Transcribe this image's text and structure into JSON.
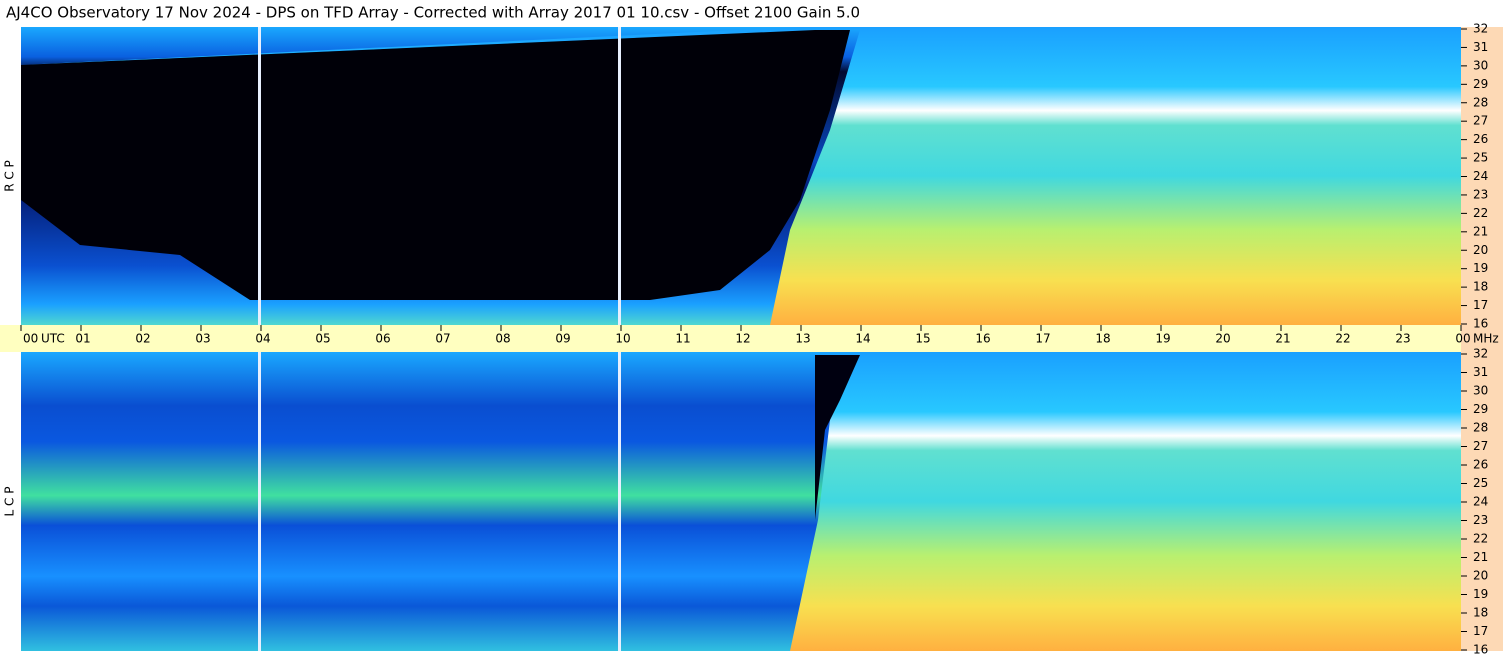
{
  "chart_data": {
    "type": "spectrogram",
    "title": "AJ4CO Observatory  17 Nov 2024  -  DPS on TFD Array  -  Corrected with Array 2017 01 10.csv  -  Offset 2100  Gain 5.0",
    "xlabel": "UTC",
    "ylabel": "MHz",
    "xlim": [
      0,
      24
    ],
    "xticks": [
      {
        "value": 0,
        "label": "00"
      },
      {
        "value": 1,
        "label": "01"
      },
      {
        "value": 2,
        "label": "02"
      },
      {
        "value": 3,
        "label": "03"
      },
      {
        "value": 4,
        "label": "04"
      },
      {
        "value": 5,
        "label": "05"
      },
      {
        "value": 6,
        "label": "06"
      },
      {
        "value": 7,
        "label": "07"
      },
      {
        "value": 8,
        "label": "08"
      },
      {
        "value": 9,
        "label": "09"
      },
      {
        "value": 10,
        "label": "10"
      },
      {
        "value": 11,
        "label": "11"
      },
      {
        "value": 12,
        "label": "12"
      },
      {
        "value": 13,
        "label": "13"
      },
      {
        "value": 14,
        "label": "14"
      },
      {
        "value": 15,
        "label": "15"
      },
      {
        "value": 16,
        "label": "16"
      },
      {
        "value": 17,
        "label": "17"
      },
      {
        "value": 18,
        "label": "18"
      },
      {
        "value": 19,
        "label": "19"
      },
      {
        "value": 20,
        "label": "20"
      },
      {
        "value": 21,
        "label": "21"
      },
      {
        "value": 22,
        "label": "22"
      },
      {
        "value": 23,
        "label": "23"
      },
      {
        "value": 24,
        "label": "00"
      }
    ],
    "ylim": [
      16,
      32
    ],
    "yticks": [
      16,
      17,
      18,
      19,
      20,
      21,
      22,
      23,
      24,
      25,
      26,
      27,
      28,
      29,
      30,
      31,
      32
    ],
    "panels": [
      {
        "label": "R C P"
      },
      {
        "label": "L C P"
      }
    ]
  }
}
